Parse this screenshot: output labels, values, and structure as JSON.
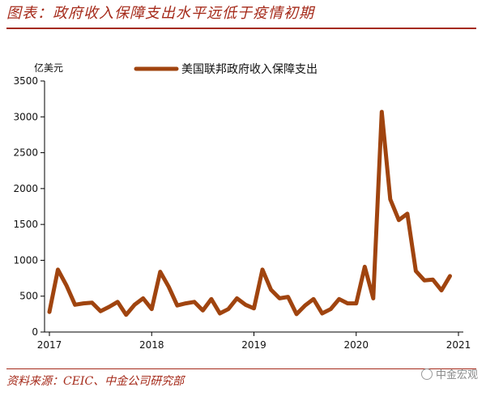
{
  "header": {
    "title": "图表：政府收入保障支出水平远低于疫情初期"
  },
  "footer": {
    "source": "资料来源：CEIC、中金公司研究部",
    "watermark": "中金宏观"
  },
  "colors": {
    "accent": "#a52a1a",
    "series": "#a0440f"
  },
  "chart_data": {
    "type": "line",
    "ylabel": "亿美元",
    "ylim": [
      0,
      3500
    ],
    "yticks": [
      0,
      500,
      1000,
      1500,
      2000,
      2500,
      3000,
      3500
    ],
    "xticks": [
      "2017",
      "2018",
      "2019",
      "2020",
      "2021"
    ],
    "legend": "top",
    "grid": false,
    "series": [
      {
        "name": "美国联邦政府收入保障支出",
        "x_start": "2017-01",
        "values": [
          280,
          870,
          650,
          380,
          400,
          410,
          290,
          350,
          420,
          240,
          380,
          470,
          320,
          840,
          630,
          370,
          400,
          420,
          300,
          460,
          260,
          320,
          470,
          380,
          330,
          870,
          590,
          470,
          490,
          250,
          370,
          460,
          260,
          320,
          460,
          400,
          400,
          910,
          470,
          3070,
          1850,
          1560,
          1650,
          850,
          720,
          730,
          580,
          780
        ]
      }
    ]
  }
}
